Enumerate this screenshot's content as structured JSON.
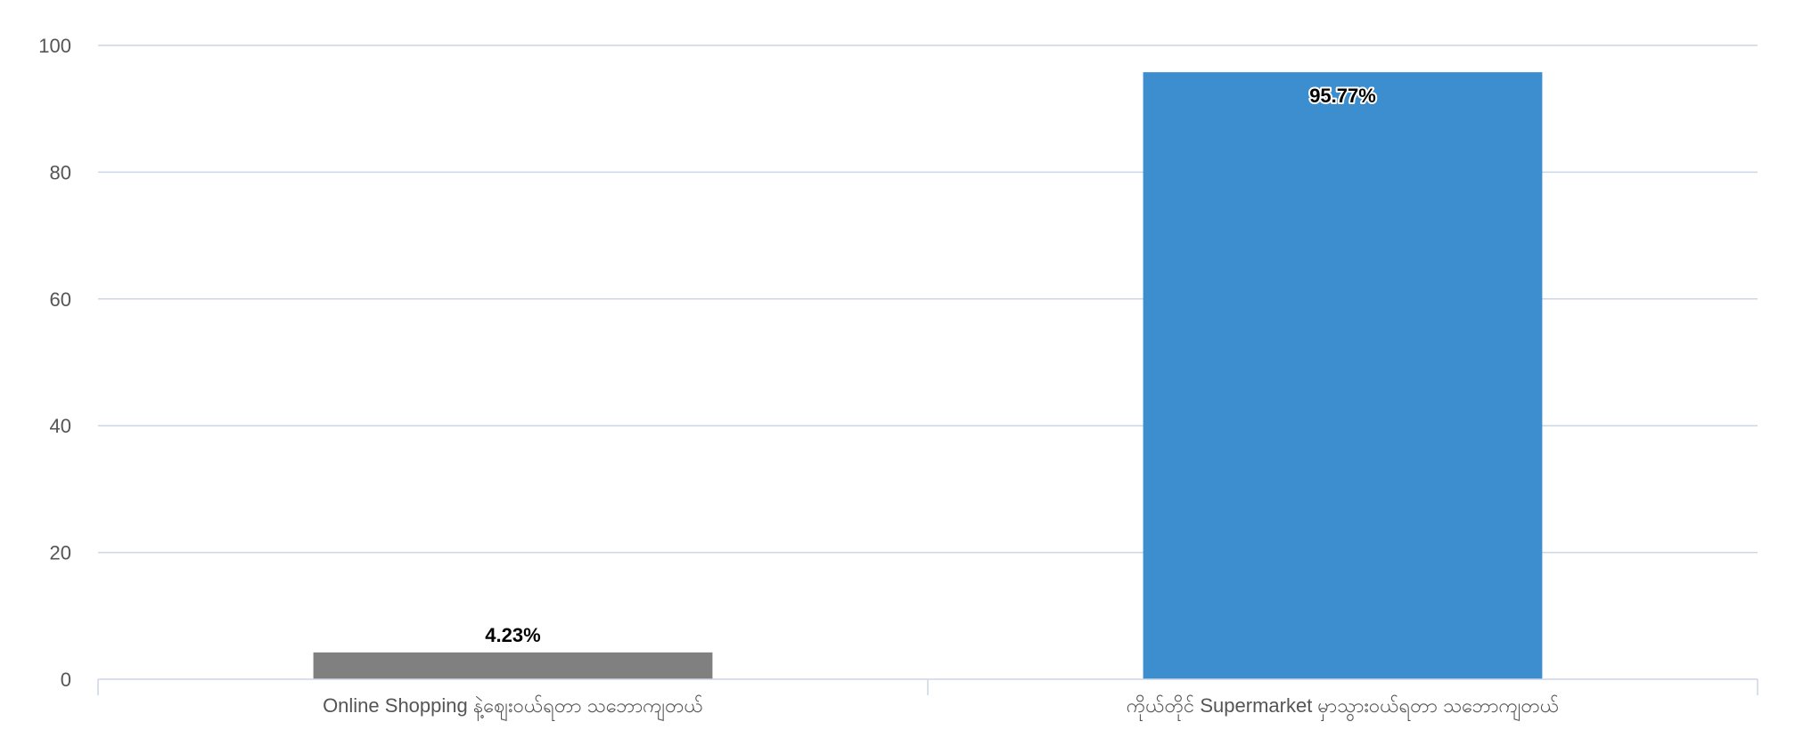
{
  "chart_data": {
    "type": "bar",
    "categories": [
      "Online Shopping နဲ့စျေးဝယ်ရတာ သဘောကျတယ်",
      "ကိုယ်တိုင် Supermarket မှာသွားဝယ်ရတာ သဘောကျတယ်"
    ],
    "values": [
      4.23,
      95.77
    ],
    "data_labels": [
      "4.23%",
      "95.77%"
    ],
    "colors": [
      "#808080",
      "#3d8ecf"
    ],
    "ylim": [
      0,
      100
    ],
    "yticks": [
      0,
      20,
      40,
      60,
      80,
      100
    ],
    "grid": true,
    "legend": "none",
    "title": "",
    "xlabel": "",
    "ylabel": ""
  }
}
